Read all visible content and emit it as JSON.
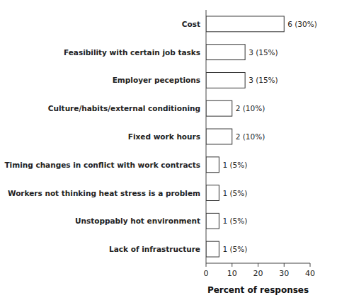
{
  "chart_data": {
    "type": "bar",
    "orientation": "horizontal",
    "categories": [
      "Lack of infrastructure",
      "Unstoppably hot environment",
      "Workers not thinking heat stress is a problem",
      "Timing changes in conflict with work contracts",
      "Fixed work hours",
      "Culture/habits/external conditioning",
      "Employer peceptions",
      "Feasibility with certain job tasks",
      "Cost"
    ],
    "values": [
      5,
      5,
      5,
      5,
      10,
      10,
      15,
      15,
      30
    ],
    "value_labels": [
      "1 (5%)",
      "1 (5%)",
      "1 (5%)",
      "1 (5%)",
      "2 (10%)",
      "2 (10%)",
      "3 (15%)",
      "3 (15%)",
      "6 (30%)"
    ],
    "data_labels": true,
    "color": "white",
    "xlabel": "Percent of responses",
    "xlim": [
      0,
      40
    ],
    "xticks": [
      0,
      10,
      20,
      30,
      40
    ]
  }
}
